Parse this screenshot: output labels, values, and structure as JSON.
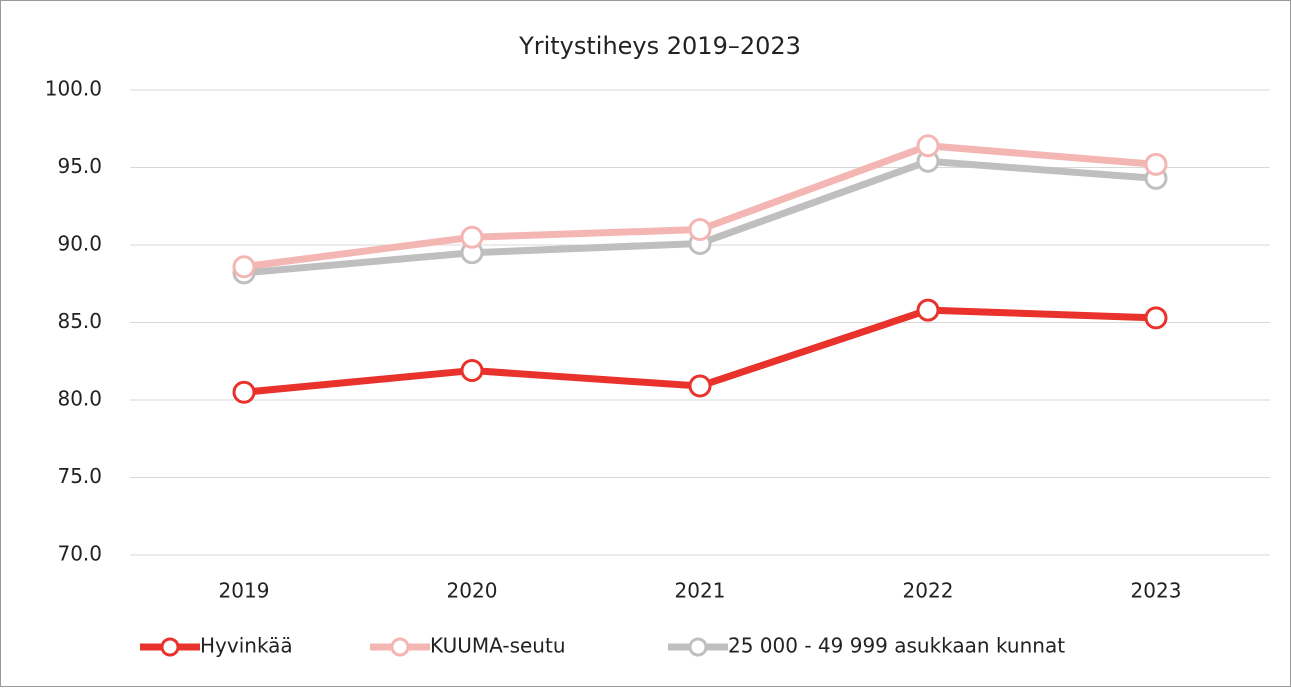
{
  "chart_data": {
    "type": "line",
    "title": "Yritystiheys 2019–2023",
    "categories": [
      "2019",
      "2020",
      "2021",
      "2022",
      "2023"
    ],
    "series": [
      {
        "name": "Hyvinkää",
        "color": "#e8322b",
        "values": [
          80.5,
          81.9,
          80.9,
          85.8,
          85.3
        ]
      },
      {
        "name": "KUUMA-seutu",
        "color": "#f4b6b3",
        "values": [
          88.6,
          90.5,
          91.0,
          96.4,
          95.2
        ]
      },
      {
        "name": "25 000 - 49 999 asukkaan kunnat",
        "color": "#bfbfbf",
        "values": [
          88.2,
          89.5,
          90.1,
          95.4,
          94.3
        ]
      }
    ],
    "ylim": [
      70,
      100
    ],
    "yticks": [
      {
        "value": 70,
        "label": "70.0"
      },
      {
        "value": 75,
        "label": "75.0"
      },
      {
        "value": 80,
        "label": "80.0"
      },
      {
        "value": 85,
        "label": "85.0"
      },
      {
        "value": 90,
        "label": "90.0"
      },
      {
        "value": 95,
        "label": "95.0"
      },
      {
        "value": 100,
        "label": "100.0"
      }
    ],
    "grid": true,
    "legend": "bottom"
  }
}
